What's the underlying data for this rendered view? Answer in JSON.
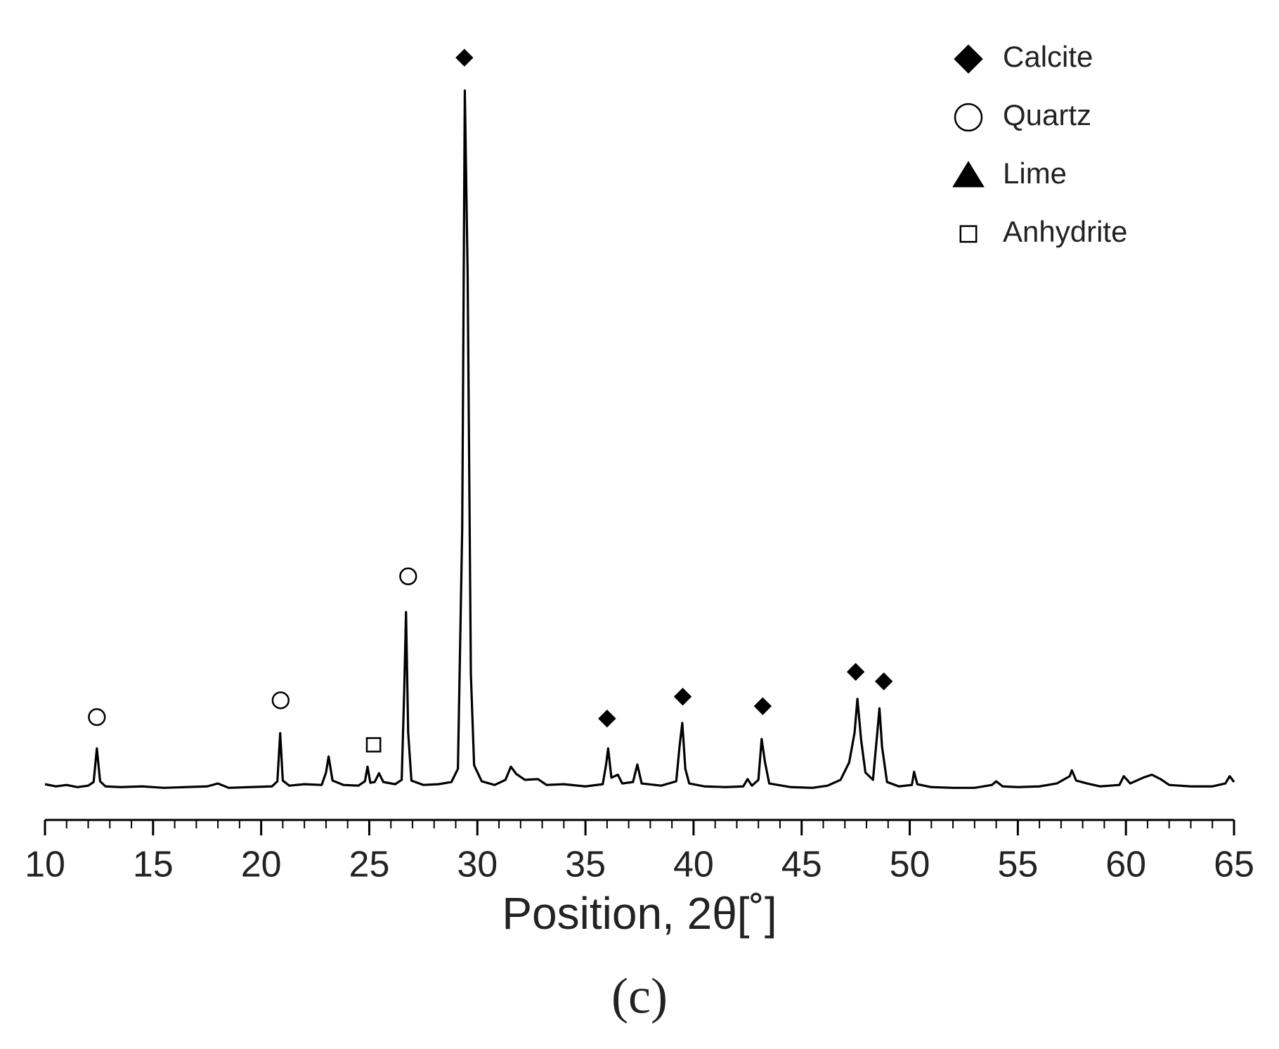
{
  "chart_data": {
    "type": "line",
    "xlabel": "Position, 2θ[˚]",
    "panel_label": "(c)",
    "color": "#000000",
    "xlim": [
      10,
      65
    ],
    "xticks": [
      10,
      15,
      20,
      25,
      30,
      35,
      40,
      45,
      50,
      55,
      60,
      65
    ],
    "ylim": [
      0,
      110
    ],
    "x": [
      10,
      10.5,
      11,
      11.5,
      12,
      12.25,
      12.4,
      12.55,
      12.8,
      13.5,
      14.5,
      15.5,
      16.5,
      17.5,
      18,
      18.5,
      19.5,
      20.5,
      20.75,
      20.88,
      21.0,
      21.3,
      22,
      22.8,
      23.0,
      23.12,
      23.3,
      23.8,
      24.5,
      24.8,
      24.92,
      25.05,
      25.25,
      25.45,
      25.65,
      26.2,
      26.5,
      26.62,
      26.7,
      26.8,
      26.95,
      27.5,
      28.2,
      28.8,
      29.1,
      29.3,
      29.42,
      29.55,
      29.7,
      29.85,
      30.2,
      30.8,
      31.3,
      31.55,
      31.8,
      32.2,
      32.8,
      33.2,
      34,
      35,
      35.8,
      35.95,
      36.05,
      36.2,
      36.5,
      36.7,
      37.2,
      37.4,
      37.6,
      38.5,
      39.2,
      39.35,
      39.48,
      39.62,
      39.8,
      40.5,
      41.5,
      42.3,
      42.5,
      42.7,
      43.0,
      43.15,
      43.3,
      43.5,
      44.5,
      45.5,
      46.2,
      46.8,
      47.2,
      47.45,
      47.58,
      47.75,
      47.95,
      48.3,
      48.5,
      48.6,
      48.72,
      48.95,
      49.5,
      50.1,
      50.2,
      50.35,
      51,
      52,
      53,
      53.8,
      54,
      54.3,
      55,
      56,
      56.8,
      57.4,
      57.5,
      57.7,
      58.2,
      58.8,
      59.7,
      59.9,
      60.2,
      60.8,
      61.2,
      61.6,
      62,
      63,
      64,
      64.6,
      64.8,
      65
    ],
    "values": [
      4.9,
      4.6,
      4.8,
      4.5,
      4.7,
      5.2,
      9.8,
      5.3,
      4.6,
      4.5,
      4.6,
      4.4,
      4.5,
      4.6,
      5.0,
      4.4,
      4.5,
      4.6,
      5.3,
      11.9,
      5.4,
      4.7,
      4.9,
      4.8,
      6.5,
      8.7,
      5.4,
      4.8,
      4.7,
      5.3,
      7.3,
      5.1,
      5.2,
      6.4,
      5.2,
      4.9,
      5.5,
      18,
      28.5,
      12,
      5.4,
      4.8,
      4.9,
      5.2,
      7,
      40,
      100,
      75,
      20,
      7.5,
      5.3,
      4.8,
      5.5,
      7.3,
      6.3,
      5.5,
      5.6,
      4.8,
      4.9,
      4.6,
      4.9,
      7.5,
      9.8,
      5.8,
      6.2,
      5,
      5.2,
      7.6,
      5,
      4.7,
      5.3,
      10,
      13.3,
      7,
      5,
      4.6,
      4.5,
      4.6,
      5.6,
      4.7,
      5.5,
      11.1,
      8,
      5,
      4.5,
      4.4,
      4.7,
      5.5,
      7.9,
      12,
      16.6,
      11,
      6.5,
      5.5,
      12,
      15.3,
      10,
      5.2,
      4.6,
      4.8,
      6.6,
      4.9,
      4.5,
      4.4,
      4.4,
      4.8,
      5.3,
      4.6,
      4.5,
      4.6,
      5.0,
      6,
      6.8,
      5.4,
      5,
      4.6,
      4.8,
      6.0,
      5.0,
      5.8,
      6.2,
      5.6,
      4.8,
      4.6,
      4.6,
      5,
      6.0,
      5.2
    ],
    "phases": [
      {
        "name": "Calcite",
        "marker": "diamond",
        "fill": "#000000",
        "x": [
          29.4,
          36.0,
          39.5,
          43.2,
          47.5,
          48.8
        ],
        "y": [
          104.5,
          13.9,
          16.9,
          15.6,
          20.3,
          19.0
        ]
      },
      {
        "name": "Quartz",
        "marker": "circle",
        "fill": "none",
        "x": [
          12.4,
          20.9,
          26.8
        ],
        "y": [
          14.1,
          16.4,
          33.4
        ]
      },
      {
        "name": "Lime",
        "marker": "triangle",
        "fill": "#000000",
        "x": [],
        "y": []
      },
      {
        "name": "Anhydrite",
        "marker": "square",
        "fill": "none",
        "x": [
          25.2
        ],
        "y": [
          10.3
        ]
      }
    ]
  }
}
